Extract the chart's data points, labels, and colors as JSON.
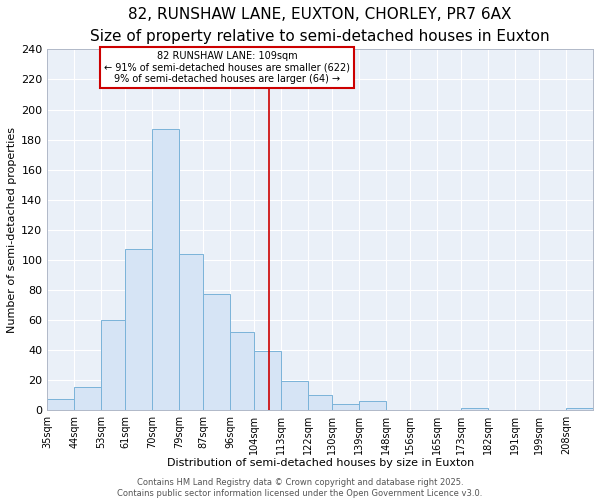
{
  "title": "82, RUNSHAW LANE, EUXTON, CHORLEY, PR7 6AX",
  "subtitle": "Size of property relative to semi-detached houses in Euxton",
  "xlabel": "Distribution of semi-detached houses by size in Euxton",
  "ylabel": "Number of semi-detached properties",
  "bin_labels": [
    "35sqm",
    "44sqm",
    "53sqm",
    "61sqm",
    "70sqm",
    "79sqm",
    "87sqm",
    "96sqm",
    "104sqm",
    "113sqm",
    "122sqm",
    "130sqm",
    "139sqm",
    "148sqm",
    "156sqm",
    "165sqm",
    "173sqm",
    "182sqm",
    "191sqm",
    "199sqm",
    "208sqm"
  ],
  "bin_edges": [
    35,
    44,
    53,
    61,
    70,
    79,
    87,
    96,
    104,
    113,
    122,
    130,
    139,
    148,
    156,
    165,
    173,
    182,
    191,
    199,
    208,
    217
  ],
  "counts": [
    7,
    15,
    60,
    107,
    187,
    104,
    77,
    52,
    39,
    19,
    10,
    4,
    6,
    0,
    0,
    0,
    1,
    0,
    0,
    0,
    1
  ],
  "bar_fill": "#d6e4f5",
  "bar_edge": "#7ab3d9",
  "vline_x": 109,
  "vline_color": "#cc0000",
  "ylim": [
    0,
    240
  ],
  "yticks": [
    0,
    20,
    40,
    60,
    80,
    100,
    120,
    140,
    160,
    180,
    200,
    220,
    240
  ],
  "annotation_title": "82 RUNSHAW LANE: 109sqm",
  "annotation_line1": "← 91% of semi-detached houses are smaller (622)",
  "annotation_line2": "9% of semi-detached houses are larger (64) →",
  "annotation_box_facecolor": "#ffffff",
  "annotation_box_edgecolor": "#cc0000",
  "footer1": "Contains HM Land Registry data © Crown copyright and database right 2025.",
  "footer2": "Contains public sector information licensed under the Open Government Licence v3.0.",
  "fig_facecolor": "#ffffff",
  "ax_facecolor": "#eaf0f8",
  "grid_color": "#ffffff",
  "title_fontsize": 11,
  "subtitle_fontsize": 9,
  "tick_fontsize": 7,
  "label_fontsize": 8,
  "footer_fontsize": 6
}
